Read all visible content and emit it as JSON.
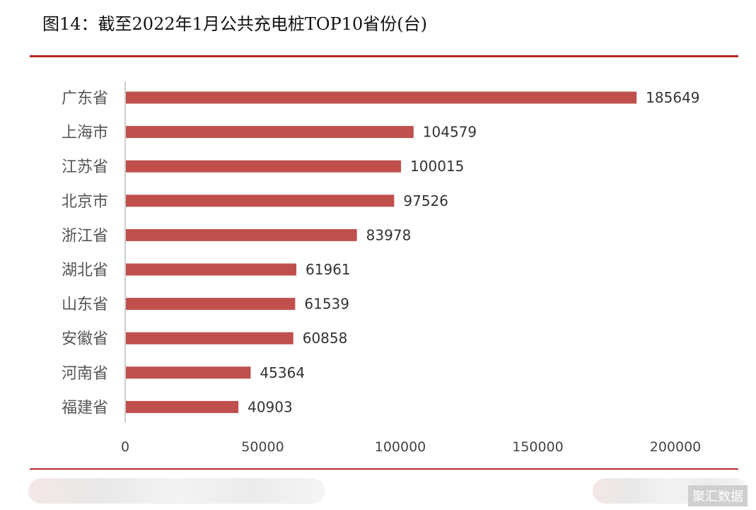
{
  "title": "图14：截至2022年1月公共充电桩TOP10省份(台)",
  "source": "聚汇数据",
  "colors": {
    "bar": "#c0504d",
    "rule": "#b8282a",
    "axis": "#bfbfbf"
  },
  "chart_data": {
    "type": "bar",
    "orientation": "horizontal",
    "categories": [
      "广东省",
      "上海市",
      "江苏省",
      "北京市",
      "浙江省",
      "湖北省",
      "山东省",
      "安徽省",
      "河南省",
      "福建省"
    ],
    "values": [
      185649,
      104579,
      100015,
      97526,
      83978,
      61961,
      61539,
      60858,
      45364,
      40903
    ],
    "value_labels": [
      "185649",
      "104579",
      "100015",
      "97526",
      "83978",
      "61961",
      "61539",
      "60858",
      "45364",
      "40903"
    ],
    "xlim": [
      0,
      200000
    ],
    "x_ticks": [
      0,
      50000,
      100000,
      150000,
      200000
    ],
    "x_tick_labels": [
      "0",
      "50000",
      "100000",
      "150000",
      "200000"
    ],
    "grid": false,
    "legend": "none"
  }
}
